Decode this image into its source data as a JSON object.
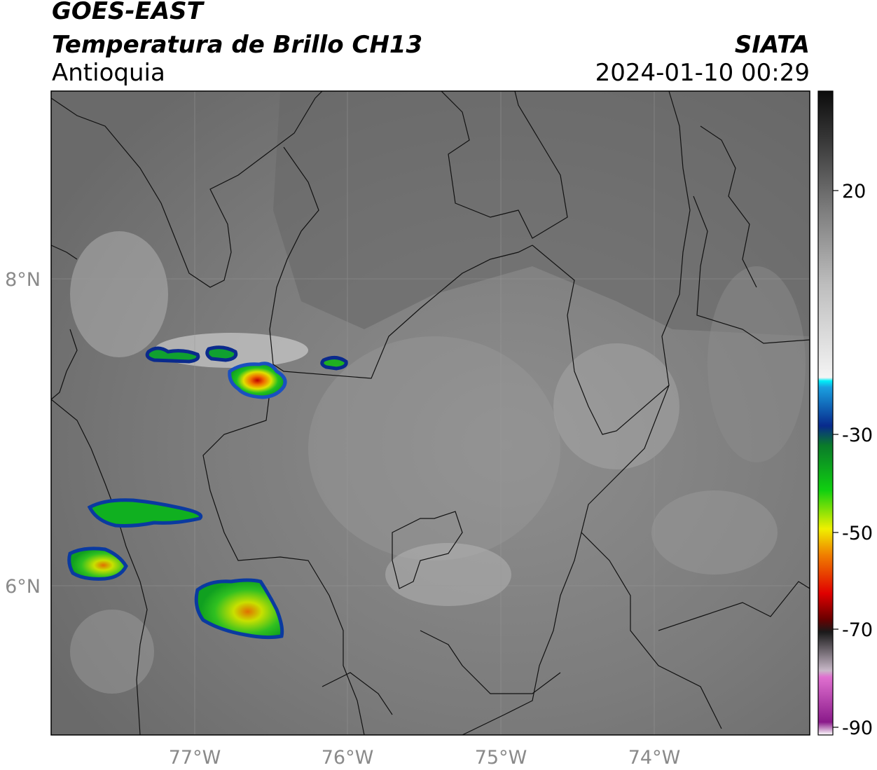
{
  "header": {
    "satellite": "GOES-EAST",
    "product": "Temperatura de Brillo CH13",
    "region": "Antioquia",
    "agency": "SIATA",
    "datetime": "2024-01-10 00:29"
  },
  "map": {
    "lon_ticks": [
      "77°W",
      "76°W",
      "75°W",
      "74°W"
    ],
    "lat_ticks": [
      "8°N",
      "6°N"
    ],
    "lon_range": [
      -77.94,
      -72.98
    ],
    "lat_range": [
      4.95,
      9.15
    ]
  },
  "colorbar": {
    "ticks": [
      "20",
      "-30",
      "-50",
      "-70",
      "-90"
    ],
    "range_c": [
      -90,
      40
    ],
    "colors": {
      "warm_gray": "#7a7a7a",
      "cyan": "#00e5f5",
      "blue": "#0a2a8c",
      "green": "#10b020",
      "yellow": "#f0f000",
      "orange": "#f08000",
      "red": "#d00000",
      "black": "#111111",
      "pink": "#e060c0",
      "purple": "#9a1a9a"
    }
  }
}
